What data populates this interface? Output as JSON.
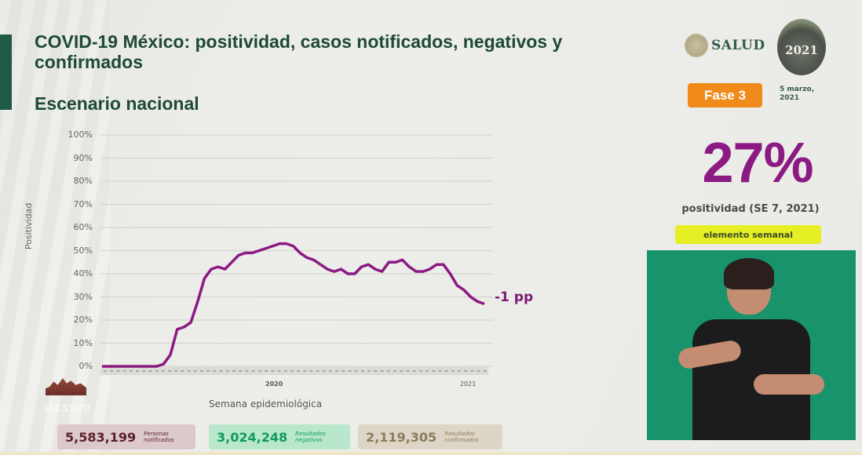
{
  "header": {
    "title": "COVID-19 México: positividad, casos notificados, negativos y confirmados",
    "subtitle": "Escenario nacional"
  },
  "branding": {
    "salud": "SALUD",
    "emblem_year": "2021",
    "phase_badge": "Fase 3",
    "date": "5 marzo, 2021",
    "footer_logo": "MÉXICO"
  },
  "highlight": {
    "value": "27%",
    "label": "positividad (SE 7, 2021)",
    "badge": "elemento semanal"
  },
  "chart_labels": {
    "ylabel": "Positividad",
    "xlabel": "Semana epidemiológica",
    "year_2020": "2020",
    "year_2021": "2021",
    "change_annotation": "-1 pp",
    "yticks": [
      "100%",
      "90%",
      "80%",
      "70%",
      "60%",
      "50%",
      "40%",
      "30%",
      "20%",
      "10%",
      "0%"
    ]
  },
  "stats": [
    {
      "value": "5,583,199",
      "label": "Personas notificados",
      "color": "#5b1f2a"
    },
    {
      "value": "3,024,248",
      "label": "Resultados negativos",
      "color": "#12995f"
    },
    {
      "value": "2,119,305",
      "label": "Resultados confirmados",
      "color": "#8b7c5a"
    }
  ],
  "colors": {
    "line": "#8b1a82",
    "accent_green": "#1e5a45",
    "phase_orange": "#f08a1a",
    "badge_yellow": "#e5ef24"
  },
  "chart_data": {
    "type": "line",
    "title": "Escenario nacional",
    "xlabel": "Semana epidemiológica",
    "ylabel": "Positividad",
    "ylim": [
      0,
      100
    ],
    "grid": true,
    "legend": null,
    "annotations": [
      "-1 pp"
    ],
    "x_groups": [
      "2020",
      "2021"
    ],
    "series": [
      {
        "name": "Positividad (%)",
        "values": [
          0,
          0,
          0,
          0,
          0,
          0,
          0,
          0,
          0,
          1,
          5,
          16,
          17,
          19,
          28,
          38,
          42,
          43,
          42,
          45,
          48,
          49,
          49,
          50,
          51,
          52,
          53,
          53,
          52,
          49,
          47,
          46,
          44,
          42,
          41,
          42,
          40,
          40,
          43,
          44,
          42,
          41,
          45,
          45,
          46,
          43,
          41,
          41,
          42,
          44,
          44,
          40,
          35,
          33,
          30,
          28,
          27
        ]
      }
    ]
  }
}
